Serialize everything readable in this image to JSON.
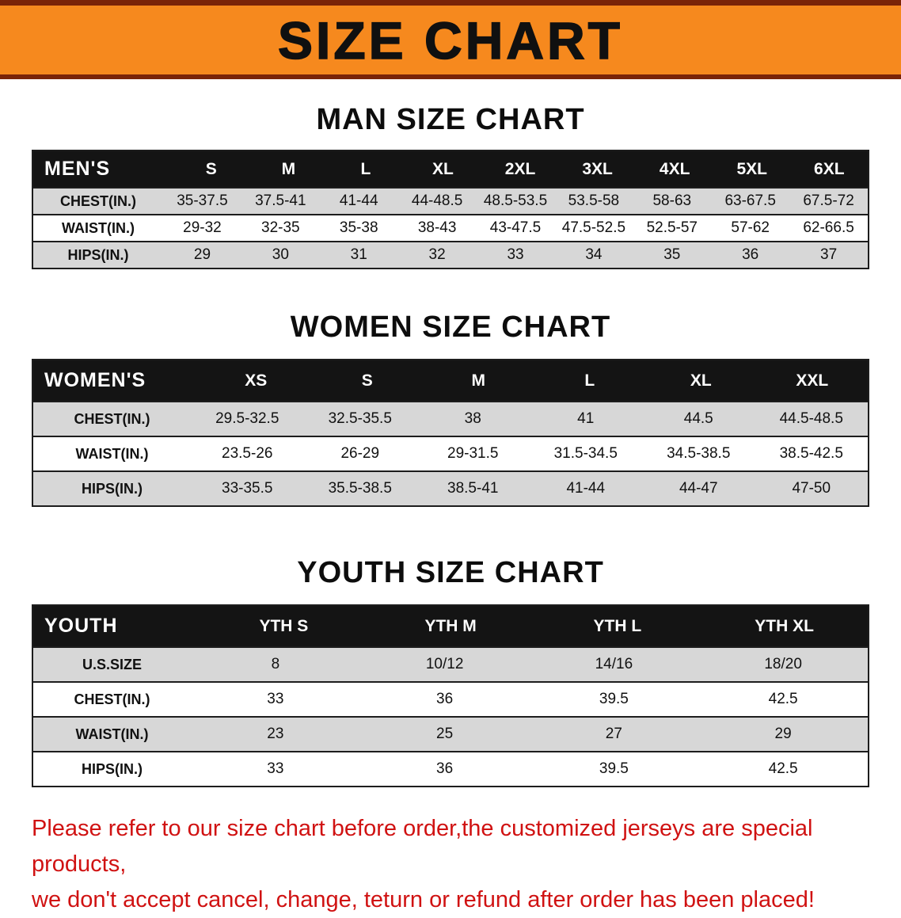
{
  "banner": {
    "title": "SIZE CHART",
    "bg_color": "#f6891e",
    "stripe_color": "#7a2408"
  },
  "sections": [
    {
      "title": "MAN SIZE CHART",
      "table": {
        "header": [
          "MEN'S",
          "S",
          "M",
          "L",
          "XL",
          "2XL",
          "3XL",
          "4XL",
          "5XL",
          "6XL"
        ],
        "rows": [
          [
            "CHEST(IN.)",
            "35-37.5",
            "37.5-41",
            "41-44",
            "44-48.5",
            "48.5-53.5",
            "53.5-58",
            "58-63",
            "63-67.5",
            "67.5-72"
          ],
          [
            "WAIST(IN.)",
            "29-32",
            "32-35",
            "35-38",
            "38-43",
            "43-47.5",
            "47.5-52.5",
            "52.5-57",
            "57-62",
            "62-66.5"
          ],
          [
            "HIPS(IN.)",
            "29",
            "30",
            "31",
            "32",
            "33",
            "34",
            "35",
            "36",
            "37"
          ]
        ]
      }
    },
    {
      "title": "WOMEN SIZE CHART",
      "table": {
        "header": [
          "WOMEN'S",
          "XS",
          "S",
          "M",
          "L",
          "XL",
          "XXL"
        ],
        "rows": [
          [
            "CHEST(IN.)",
            "29.5-32.5",
            "32.5-35.5",
            "38",
            "41",
            "44.5",
            "44.5-48.5"
          ],
          [
            "WAIST(IN.)",
            "23.5-26",
            "26-29",
            "29-31.5",
            "31.5-34.5",
            "34.5-38.5",
            "38.5-42.5"
          ],
          [
            "HIPS(IN.)",
            "33-35.5",
            "35.5-38.5",
            "38.5-41",
            "41-44",
            "44-47",
            "47-50"
          ]
        ]
      }
    },
    {
      "title": "YOUTH SIZE CHART",
      "table": {
        "header": [
          "YOUTH",
          "YTH S",
          "YTH M",
          "YTH L",
          "YTH XL"
        ],
        "rows": [
          [
            "U.S.SIZE",
            "8",
            "10/12",
            "14/16",
            "18/20"
          ],
          [
            "CHEST(IN.)",
            "33",
            "36",
            "39.5",
            "42.5"
          ],
          [
            "WAIST(IN.)",
            "23",
            "25",
            "27",
            "29"
          ],
          [
            "HIPS(IN.)",
            "33",
            "36",
            "39.5",
            "42.5"
          ]
        ]
      }
    }
  ],
  "footer": {
    "line1": "Please refer to our size chart before order,the customized jerseys are special products,",
    "line2": "we don't accept cancel, change, teturn or refund after order has been placed!"
  },
  "colors": {
    "table_header_bg": "#141414",
    "row_stripe": "#d7d7d7",
    "footer_text": "#d01212"
  }
}
